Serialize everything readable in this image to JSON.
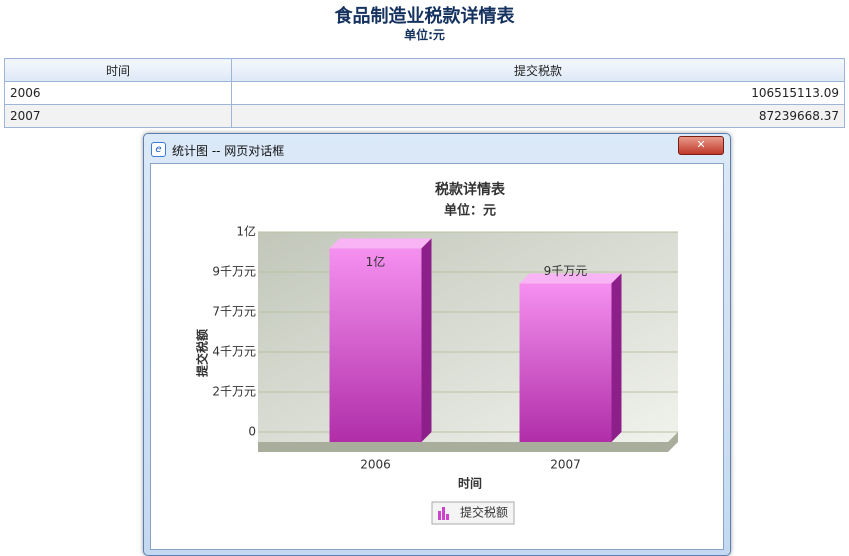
{
  "header": {
    "title": "食品制造业税款详情表",
    "subtitle": "单位:元"
  },
  "table": {
    "columns": [
      "时间",
      "提交税款"
    ],
    "rows": [
      [
        "2006",
        106515113.09
      ],
      [
        "2007",
        87239668.37
      ]
    ]
  },
  "dialog": {
    "title": "统计图 -- 网页对话框"
  },
  "chart_data": {
    "type": "bar",
    "title": "税款详情表",
    "subtitle": "单位：元",
    "x_label": "时间",
    "y_label": "提交税额",
    "categories": [
      "2006",
      "2007"
    ],
    "series": [
      {
        "name": "提交税额",
        "color": "#cc44cc",
        "values": [
          106515113.09,
          87239668.37
        ],
        "value_labels": [
          "1亿",
          "9千万元"
        ]
      }
    ],
    "ylim": [
      0,
      110000000
    ],
    "yticks": [
      0,
      {
        "value": 22000000,
        "label": "2千万元"
      },
      {
        "value": 44000000,
        "label": "4千万元"
      },
      {
        "value": 66000000,
        "label": "7千万元"
      },
      {
        "value": 88000000,
        "label": "9千万元"
      },
      {
        "value": 110000000,
        "label": "1亿"
      }
    ],
    "grid": true,
    "legend": "bottom"
  }
}
